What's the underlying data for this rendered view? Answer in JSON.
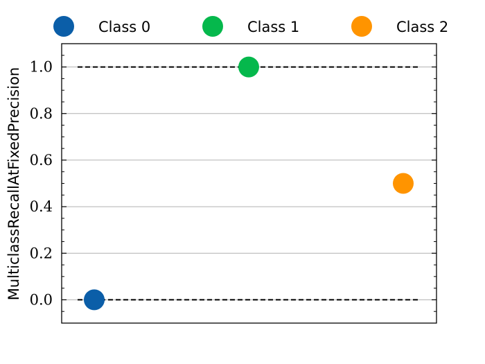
{
  "chart_data": {
    "type": "scatter",
    "title": "",
    "xlabel": "",
    "ylabel": "MulticlassRecallAtFixedPrecision",
    "ylim": [
      -0.1,
      1.1
    ],
    "yticks": [
      0.0,
      0.2,
      0.4,
      0.6,
      0.8,
      1.0
    ],
    "ytick_labels": [
      "0.0",
      "0.2",
      "0.4",
      "0.6",
      "0.8",
      "1.0"
    ],
    "grid": "horizontal",
    "legend_position": "top",
    "series": [
      {
        "name": "Class 0",
        "x": 0,
        "y": 0.0,
        "color": "#0b5ea8"
      },
      {
        "name": "Class 1",
        "x": 1,
        "y": 1.0,
        "color": "#05b84c"
      },
      {
        "name": "Class 2",
        "x": 2,
        "y": 0.5,
        "color": "#ff9400"
      }
    ],
    "reference_lines": [
      {
        "y": 1.0,
        "style": "dashed",
        "color": "#000000"
      },
      {
        "y": 0.0,
        "style": "dashed",
        "color": "#000000"
      }
    ]
  }
}
